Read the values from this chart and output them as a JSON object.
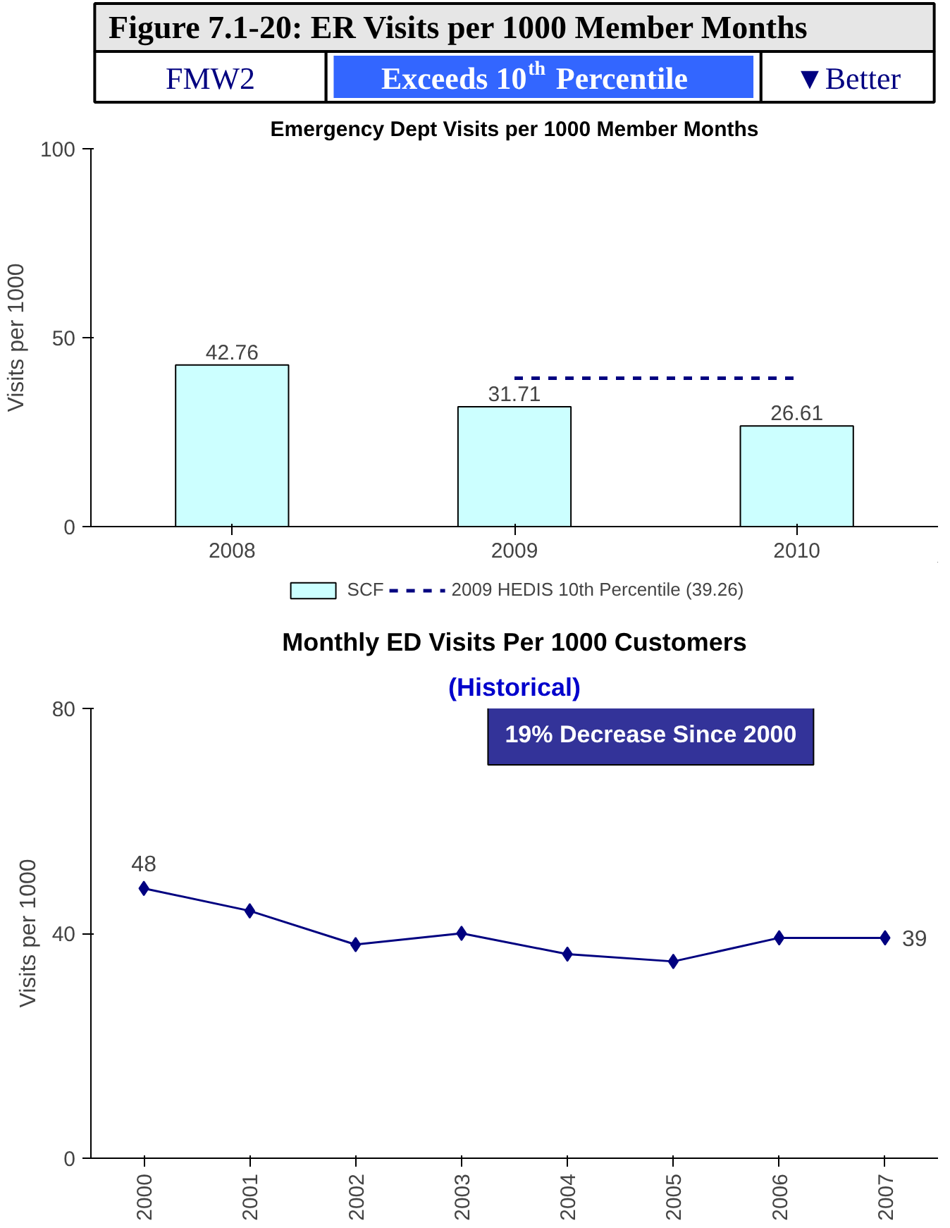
{
  "chart_data": [
    {
      "type": "bar",
      "title": "Emergency Dept Visits per 1000 Member Months",
      "ylabel": "Visits per 1000",
      "annotations": [
        "Figure 7.1-20: ER Visits per 1000 Member Months",
        "FMW2",
        "Exceeds 10$^{th}$ Percentile",
        "▼Better"
      ],
      "categories": [
        "2008",
        "2009",
        "2010"
      ],
      "series": [
        {
          "name": "SCF",
          "type": "bar",
          "color": "#ccffff",
          "values": [
            42.76,
            31.71,
            26.61
          ],
          "value_labels": [
            "42.76",
            "31.71",
            "26.61"
          ]
        },
        {
          "name": "2009 HEDIS 10th Percentile (39.26)",
          "type": "line",
          "color": "#000080",
          "line_style": "dashed",
          "values": [
            null,
            39.26,
            39.26
          ]
        }
      ],
      "ylim": [
        0,
        100
      ],
      "yticks": [
        0,
        50,
        100
      ],
      "legend": "bottom"
    },
    {
      "type": "line",
      "title": "Monthly ED Visits Per 1000 Customers",
      "subtitle": "(Historical)",
      "ylabel": "Visits per 1000",
      "annotations": [
        "19% Decrease Since 2000"
      ],
      "categories": [
        "2000",
        "2001",
        "2002",
        "2003",
        "2004",
        "2005",
        "2006",
        "2007"
      ],
      "series": [
        {
          "color": "#000080",
          "values": [
            48,
            44,
            38,
            40,
            36.3,
            35,
            39.2,
            39.2
          ],
          "value_labels": [
            "48",
            null,
            null,
            null,
            null,
            null,
            null,
            "39"
          ]
        }
      ],
      "marker": "diamond",
      "ylim": [
        0,
        80
      ],
      "yticks": [
        0,
        40,
        80
      ]
    }
  ]
}
